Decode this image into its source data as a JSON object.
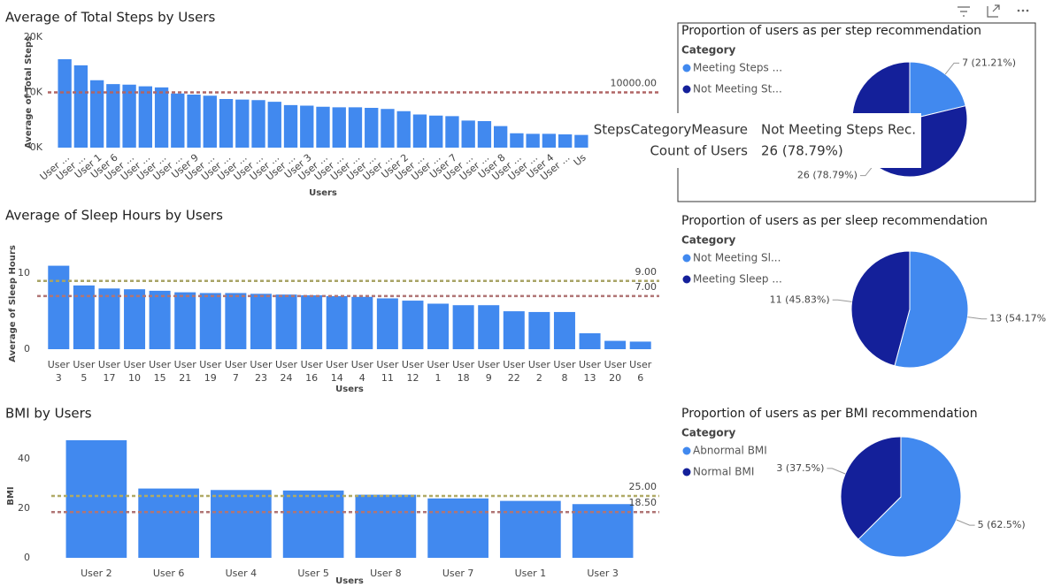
{
  "chart_data": [
    {
      "type": "bar",
      "title": "Average of Total Steps by Users",
      "x_label": "Users",
      "y_label": "Average of Total Steps",
      "categories": [
        "User ...",
        "User ...",
        "User 1",
        "User 6",
        "User ...",
        "User ...",
        "User ...",
        "User ...",
        "User 9",
        "User ...",
        "User ...",
        "User ...",
        "User ...",
        "User ...",
        "User ...",
        "User 3",
        "User ...",
        "User ...",
        "User ...",
        "User ...",
        "User ...",
        "User 2",
        "User ...",
        "User ...",
        "User 7",
        "User ...",
        "User ...",
        "User 8",
        "User ...",
        "User ...",
        "User 4",
        "User ...",
        "Us"
      ],
      "values": [
        16000,
        14900,
        12200,
        11500,
        11400,
        11100,
        10900,
        9800,
        9600,
        9400,
        8800,
        8700,
        8600,
        8300,
        7700,
        7600,
        7400,
        7300,
        7300,
        7200,
        7000,
        6600,
        6000,
        5800,
        5700,
        4900,
        4800,
        3900,
        2600,
        2500,
        2500,
        2400,
        2300
      ],
      "color": "#4189ef",
      "ylim": [
        0,
        20000
      ],
      "yticks": [
        {
          "value": 0,
          "label": "0K"
        },
        {
          "value": 10000,
          "label": "10K"
        },
        {
          "value": 20000,
          "label": "20K"
        }
      ],
      "reference_lines": [
        {
          "value": 10000,
          "label": "10000.00",
          "color": "#b06565"
        }
      ]
    },
    {
      "type": "bar",
      "title": "Average of Sleep Hours by Users",
      "x_label": "Users",
      "y_label": "Average of Sleep Hours",
      "categories": [
        "User 3",
        "User 5",
        "User 17",
        "User 10",
        "User 15",
        "User 21",
        "User 19",
        "User 7",
        "User 23",
        "User 24",
        "User 16",
        "User 14",
        "User 4",
        "User 11",
        "User 12",
        "User 1",
        "User 18",
        "User 9",
        "User 22",
        "User 2",
        "User 8",
        "User 13",
        "User 20",
        "User 6"
      ],
      "values": [
        11,
        8.4,
        8.0,
        7.9,
        7.7,
        7.5,
        7.4,
        7.4,
        7.3,
        7.2,
        7.1,
        7.0,
        6.9,
        6.7,
        6.4,
        6.0,
        5.8,
        5.8,
        5.0,
        4.9,
        4.9,
        2.1,
        1.1,
        1.0
      ],
      "color": "#4189ef",
      "ylim": [
        0,
        12
      ],
      "yticks": [
        0,
        10
      ],
      "reference_lines": [
        {
          "value": 9,
          "label": "9.00",
          "color": "#a8a466"
        },
        {
          "value": 7,
          "label": "7.00",
          "color": "#b07575"
        }
      ]
    },
    {
      "type": "bar",
      "title": "BMI by Users",
      "x_label": "Users",
      "y_label": "BMI",
      "categories": [
        "User 2",
        "User 6",
        "User 4",
        "User 5",
        "User 8",
        "User 7",
        "User 1",
        "User 3"
      ],
      "values": [
        47.5,
        28,
        27.4,
        27.2,
        25.5,
        24,
        23,
        21.7
      ],
      "color": "#4189ef",
      "ylim": [
        0,
        50
      ],
      "yticks": [
        0,
        20,
        40
      ],
      "reference_lines": [
        {
          "value": 25,
          "label": "25.00",
          "color": "#b0aa66"
        },
        {
          "value": 18.5,
          "label": "18.50",
          "color": "#b07575"
        }
      ]
    },
    {
      "type": "pie",
      "title": "Proportion of users as per step recommendation",
      "legend_title": "Category",
      "categories": [
        "Meeting Steps ...",
        "Not Meeting St..."
      ],
      "values": [
        7,
        26
      ],
      "value_labels": [
        "7 (21.21%)",
        "26 (78.79%)"
      ],
      "colors": [
        "#4189ef",
        "#14209a"
      ],
      "tooltip": {
        "rows": [
          [
            "StepsCategoryMeasure",
            "Not Meeting Steps Rec."
          ],
          [
            "Count of Users",
            "26 (78.79%)"
          ]
        ]
      }
    },
    {
      "type": "pie",
      "title": "Proportion of users as per sleep recommendation",
      "legend_title": "Category",
      "categories": [
        "Not Meeting Sl...",
        "Meeting Sleep ..."
      ],
      "values": [
        13,
        11
      ],
      "value_labels": [
        "13 (54.17%)",
        "11 (45.83%)"
      ],
      "colors": [
        "#4189ef",
        "#14209a"
      ]
    },
    {
      "type": "pie",
      "title": "Proportion of users as per BMI recommendation",
      "legend_title": "Category",
      "categories": [
        "Abnormal BMI",
        "Normal BMI"
      ],
      "values": [
        5,
        3
      ],
      "value_labels": [
        "5 (62.5%)",
        "3 (37.5%)"
      ],
      "colors": [
        "#4189ef",
        "#14209a"
      ]
    }
  ]
}
